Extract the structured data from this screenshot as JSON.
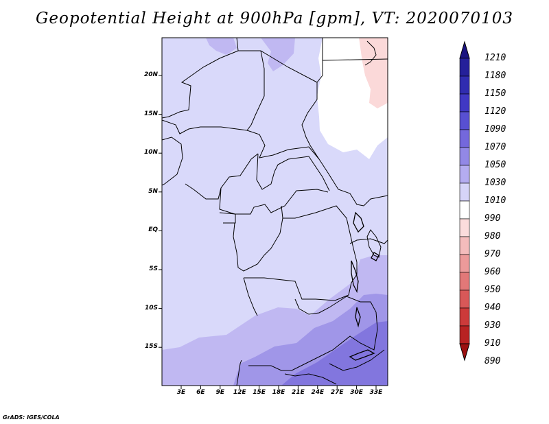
{
  "title": "Geopotential Height at 900hPa [gpm], VT: 2020070103",
  "credit": "GrADS: IGES/COLA",
  "lat_labels": [
    "20N",
    "15N",
    "10N",
    "5N",
    "EQ",
    "5S",
    "10S",
    "15S"
  ],
  "lon_labels": [
    "3E",
    "6E",
    "9E",
    "12E",
    "15E",
    "18E",
    "21E",
    "24E",
    "27E",
    "30E",
    "33E"
  ],
  "colorbar": {
    "labels": [
      "1210",
      "1180",
      "1150",
      "1120",
      "1090",
      "1070",
      "1050",
      "1030",
      "1010",
      "990",
      "980",
      "970",
      "960",
      "950",
      "940",
      "930",
      "910",
      "890"
    ],
    "colors": [
      "#1a1480",
      "#25209a",
      "#302cb0",
      "#4038c4",
      "#5850d2",
      "#7468dc",
      "#9288e6",
      "#b4acf0",
      "#d6d4f8",
      "#ffffff",
      "#fbdcdc",
      "#f4bcbc",
      "#ec9a9a",
      "#e27878",
      "#d85858",
      "#cc3a3a",
      "#b82222",
      "#9c1010"
    ]
  },
  "colors": {
    "level_1010": "#d9d9fa",
    "level_1030": "#c0b8f2",
    "level_1050": "#a096e8",
    "level_1070": "#8276de",
    "level_990": "#ffffff",
    "level_980": "#fbd9d9"
  }
}
